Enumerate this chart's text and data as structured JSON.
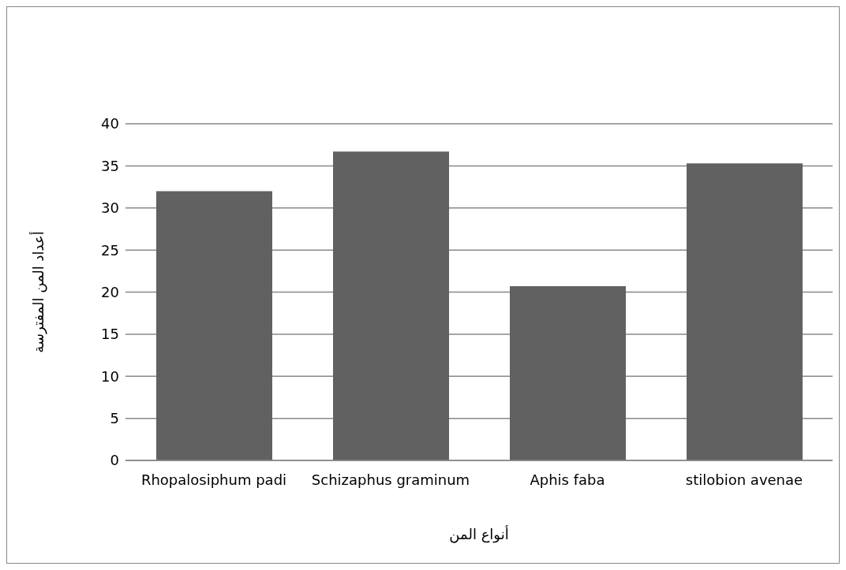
{
  "chart_data": {
    "type": "bar",
    "xlabel": "أنواع المن",
    "ylabel": "أعداد المن المفترسة",
    "categories": [
      "Rhopalosiphum padi",
      "Schizaphus graminum",
      "Aphis faba",
      "stilobion avenae"
    ],
    "values": [
      32,
      36.7,
      20.7,
      35.3
    ],
    "color": "#616161",
    "ylim": [
      0,
      40
    ],
    "yticks": [
      0,
      5,
      10,
      15,
      20,
      25,
      30,
      35,
      40
    ],
    "grid": "y",
    "legend": false
  }
}
